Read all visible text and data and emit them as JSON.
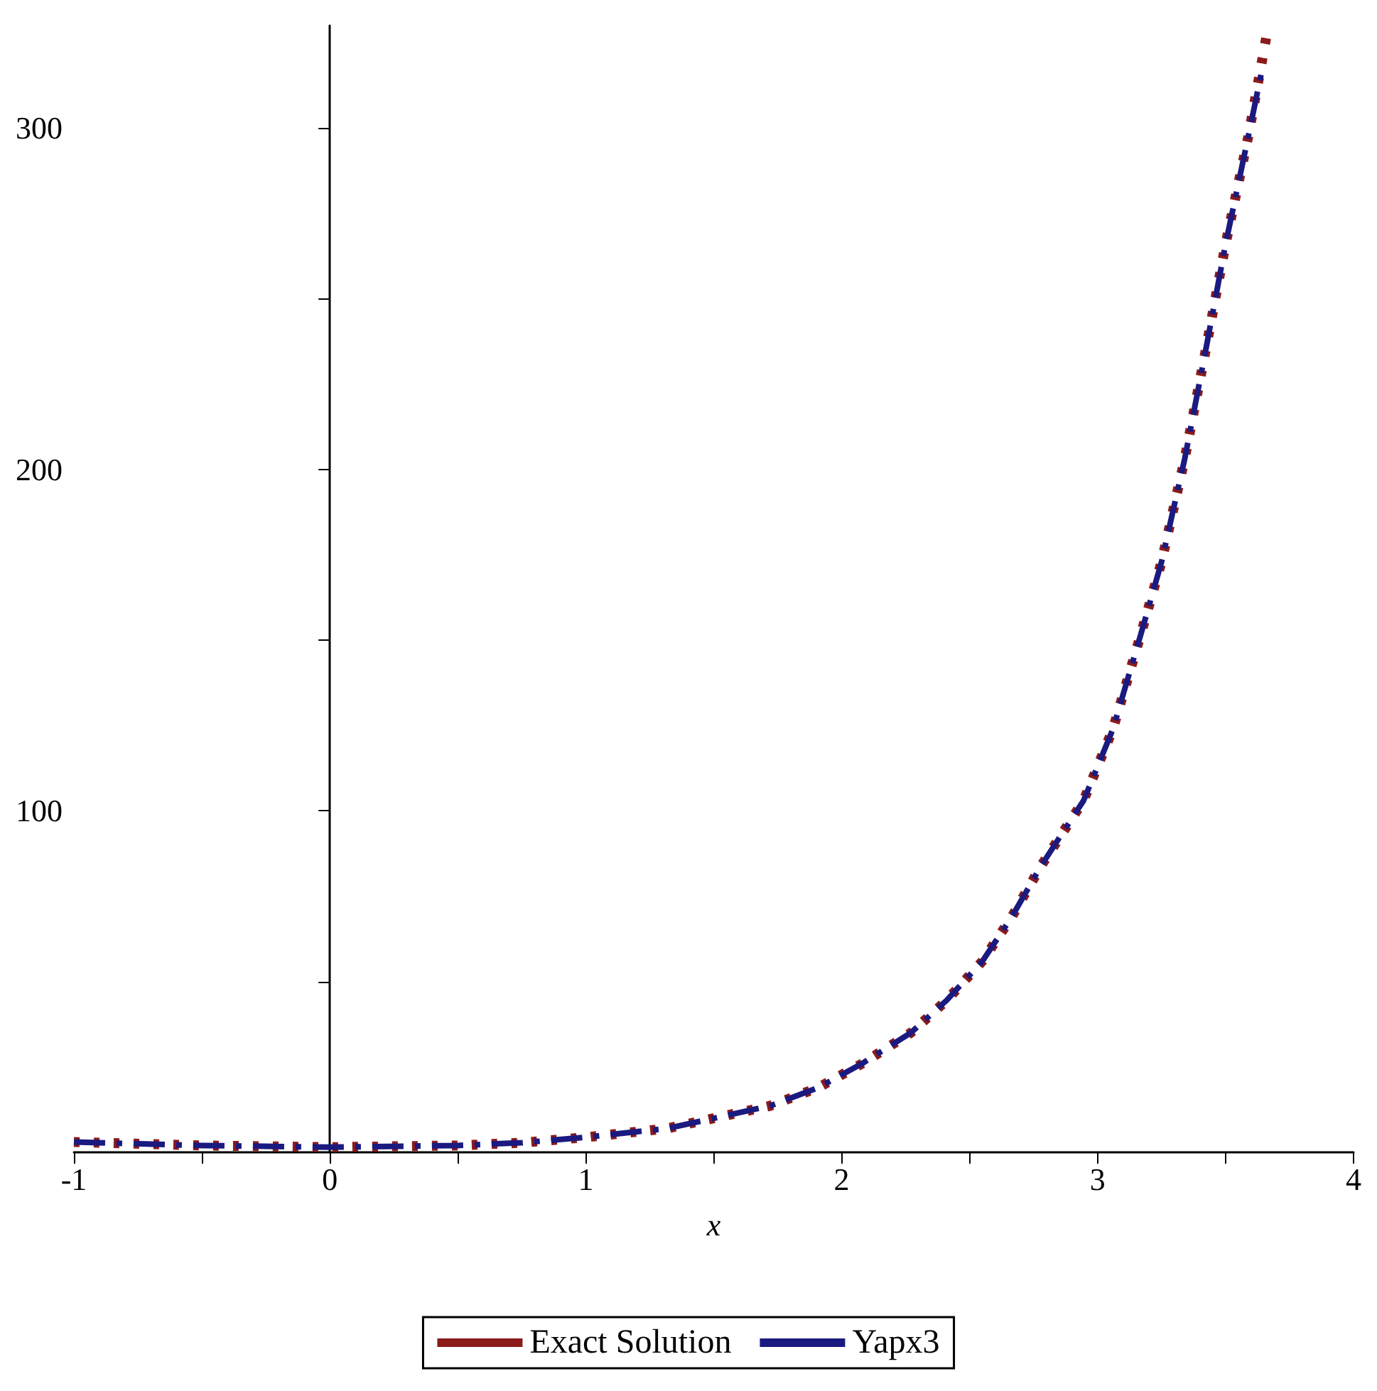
{
  "chart_data": {
    "type": "line",
    "xlabel": "x",
    "xlim": [
      -1,
      4
    ],
    "xticks": [
      -1,
      {
        "value": -0.5,
        "label": null
      },
      0,
      {
        "value": 0.5,
        "label": null
      },
      1,
      {
        "value": 1.5,
        "label": null
      },
      2,
      {
        "value": 2.5,
        "label": null
      },
      3,
      {
        "value": 3.5,
        "label": null
      },
      4
    ],
    "ylim": [
      0,
      330
    ],
    "yticks": [
      {
        "value": 50,
        "label": null
      },
      100,
      {
        "value": 150,
        "label": null
      },
      200,
      {
        "value": 250,
        "label": null
      },
      300
    ],
    "legend": "bottom",
    "series": [
      {
        "name": "Exact Solution",
        "color": "#8b1a1a",
        "line_style": "dotted",
        "x": [
          -1,
          -0.5,
          0,
          0.5,
          0.75,
          1,
          1.32,
          1.72,
          1.91,
          2.08,
          2.27,
          2.41,
          2.55,
          2.665,
          2.78,
          2.945,
          3.06,
          3.17,
          3.25,
          3.34,
          3.42,
          3.5,
          3.59,
          3.66
        ],
        "values": [
          3,
          2,
          1.5,
          2,
          2.8,
          4.4,
          7,
          13.6,
          19,
          26,
          35,
          44.5,
          56,
          69,
          84,
          103,
          124,
          152,
          173,
          203,
          234,
          266,
          298,
          327
        ]
      },
      {
        "name": "Yapx3",
        "color": "#1a1a80",
        "line_style": "dashed",
        "x": [
          -1,
          -0.5,
          0,
          0.5,
          0.75,
          1,
          1.32,
          1.72,
          1.91,
          2.08,
          2.27,
          2.41,
          2.55,
          2.665,
          2.78,
          2.945,
          3.06,
          3.17,
          3.25,
          3.34,
          3.42,
          3.5,
          3.59,
          3.645
        ],
        "values": [
          3,
          2,
          1.5,
          2,
          2.8,
          4.4,
          7,
          13.6,
          19,
          26,
          35,
          44.5,
          56,
          69,
          84,
          103,
          124,
          152,
          173,
          203,
          234,
          266,
          298,
          318
        ]
      }
    ]
  }
}
